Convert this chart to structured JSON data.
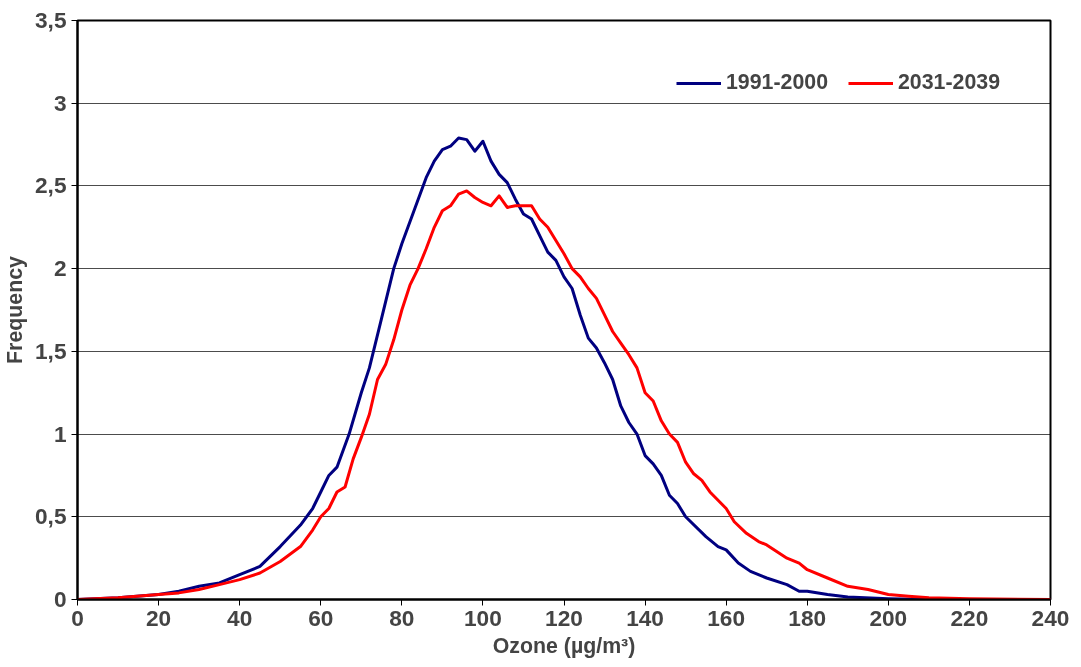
{
  "chart_data": {
    "type": "line",
    "xlabel": "Ozone (µg/m³)",
    "ylabel": "Frequency",
    "xlim": [
      0,
      240
    ],
    "xticks": [
      0,
      20,
      40,
      60,
      80,
      100,
      120,
      140,
      160,
      180,
      200,
      220,
      240
    ],
    "ylim": [
      0,
      3.5
    ],
    "yticks": [
      0,
      {
        "value": 0.5,
        "label": "0,5"
      },
      1,
      {
        "value": 1.5,
        "label": "1,5"
      },
      2,
      {
        "value": 2.5,
        "label": "2,5"
      },
      3,
      {
        "value": 3.5,
        "label": "3,5"
      }
    ],
    "grid": "y",
    "legend": "top right",
    "marker": "none",
    "line_style": "solid",
    "series": [
      {
        "name": "1991-2000",
        "color": "#000080",
        "x": [
          0,
          10,
          20,
          25,
          30,
          35,
          40,
          45,
          50,
          55,
          58,
          60,
          62,
          64,
          67,
          70,
          72,
          75,
          78,
          80,
          83,
          86,
          88,
          90,
          92,
          94,
          96,
          98,
          100,
          102,
          104,
          106,
          108,
          110,
          112,
          114,
          116,
          118,
          120,
          122,
          124,
          126,
          128,
          130,
          132,
          134,
          136,
          138,
          140,
          142,
          144,
          146,
          148,
          150,
          155,
          158,
          160,
          163,
          166,
          170,
          175,
          178,
          180,
          185,
          190,
          200,
          210,
          240
        ],
        "values": [
          0,
          0.01,
          0.03,
          0.05,
          0.08,
          0.1,
          0.15,
          0.2,
          0.32,
          0.45,
          0.55,
          0.65,
          0.75,
          0.8,
          1.0,
          1.25,
          1.4,
          1.7,
          2.0,
          2.15,
          2.35,
          2.55,
          2.65,
          2.72,
          2.74,
          2.79,
          2.78,
          2.71,
          2.77,
          2.65,
          2.57,
          2.52,
          2.42,
          2.33,
          2.3,
          2.2,
          2.1,
          2.05,
          1.95,
          1.88,
          1.72,
          1.58,
          1.52,
          1.43,
          1.33,
          1.17,
          1.07,
          1.0,
          0.87,
          0.82,
          0.75,
          0.63,
          0.58,
          0.5,
          0.38,
          0.32,
          0.3,
          0.22,
          0.17,
          0.13,
          0.09,
          0.05,
          0.05,
          0.03,
          0.015,
          0.005,
          0,
          0
        ]
      },
      {
        "name": "2031-2039",
        "color": "#ff0000",
        "x": [
          0,
          10,
          20,
          25,
          30,
          35,
          40,
          45,
          50,
          55,
          58,
          60,
          62,
          64,
          66,
          68,
          70,
          72,
          74,
          76,
          78,
          80,
          82,
          84,
          86,
          88,
          90,
          92,
          94,
          96,
          98,
          100,
          102,
          104,
          106,
          108,
          110,
          112,
          114,
          116,
          118,
          120,
          122,
          124,
          126,
          128,
          130,
          132,
          134,
          136,
          138,
          140,
          142,
          144,
          146,
          148,
          150,
          152,
          154,
          156,
          160,
          162,
          165,
          168,
          170,
          175,
          178,
          180,
          185,
          190,
          195,
          200,
          205,
          210,
          220,
          240
        ],
        "values": [
          0,
          0.01,
          0.03,
          0.04,
          0.06,
          0.09,
          0.12,
          0.16,
          0.23,
          0.32,
          0.42,
          0.5,
          0.55,
          0.65,
          0.68,
          0.85,
          0.98,
          1.12,
          1.33,
          1.42,
          1.57,
          1.75,
          1.9,
          2.0,
          2.12,
          2.25,
          2.35,
          2.38,
          2.45,
          2.47,
          2.43,
          2.4,
          2.38,
          2.44,
          2.37,
          2.38,
          2.38,
          2.38,
          2.3,
          2.25,
          2.17,
          2.09,
          2.0,
          1.95,
          1.88,
          1.82,
          1.72,
          1.62,
          1.55,
          1.48,
          1.4,
          1.25,
          1.2,
          1.08,
          1.0,
          0.95,
          0.83,
          0.76,
          0.72,
          0.65,
          0.55,
          0.47,
          0.4,
          0.35,
          0.33,
          0.25,
          0.22,
          0.18,
          0.13,
          0.08,
          0.06,
          0.03,
          0.02,
          0.01,
          0.005,
          0
        ]
      }
    ]
  }
}
